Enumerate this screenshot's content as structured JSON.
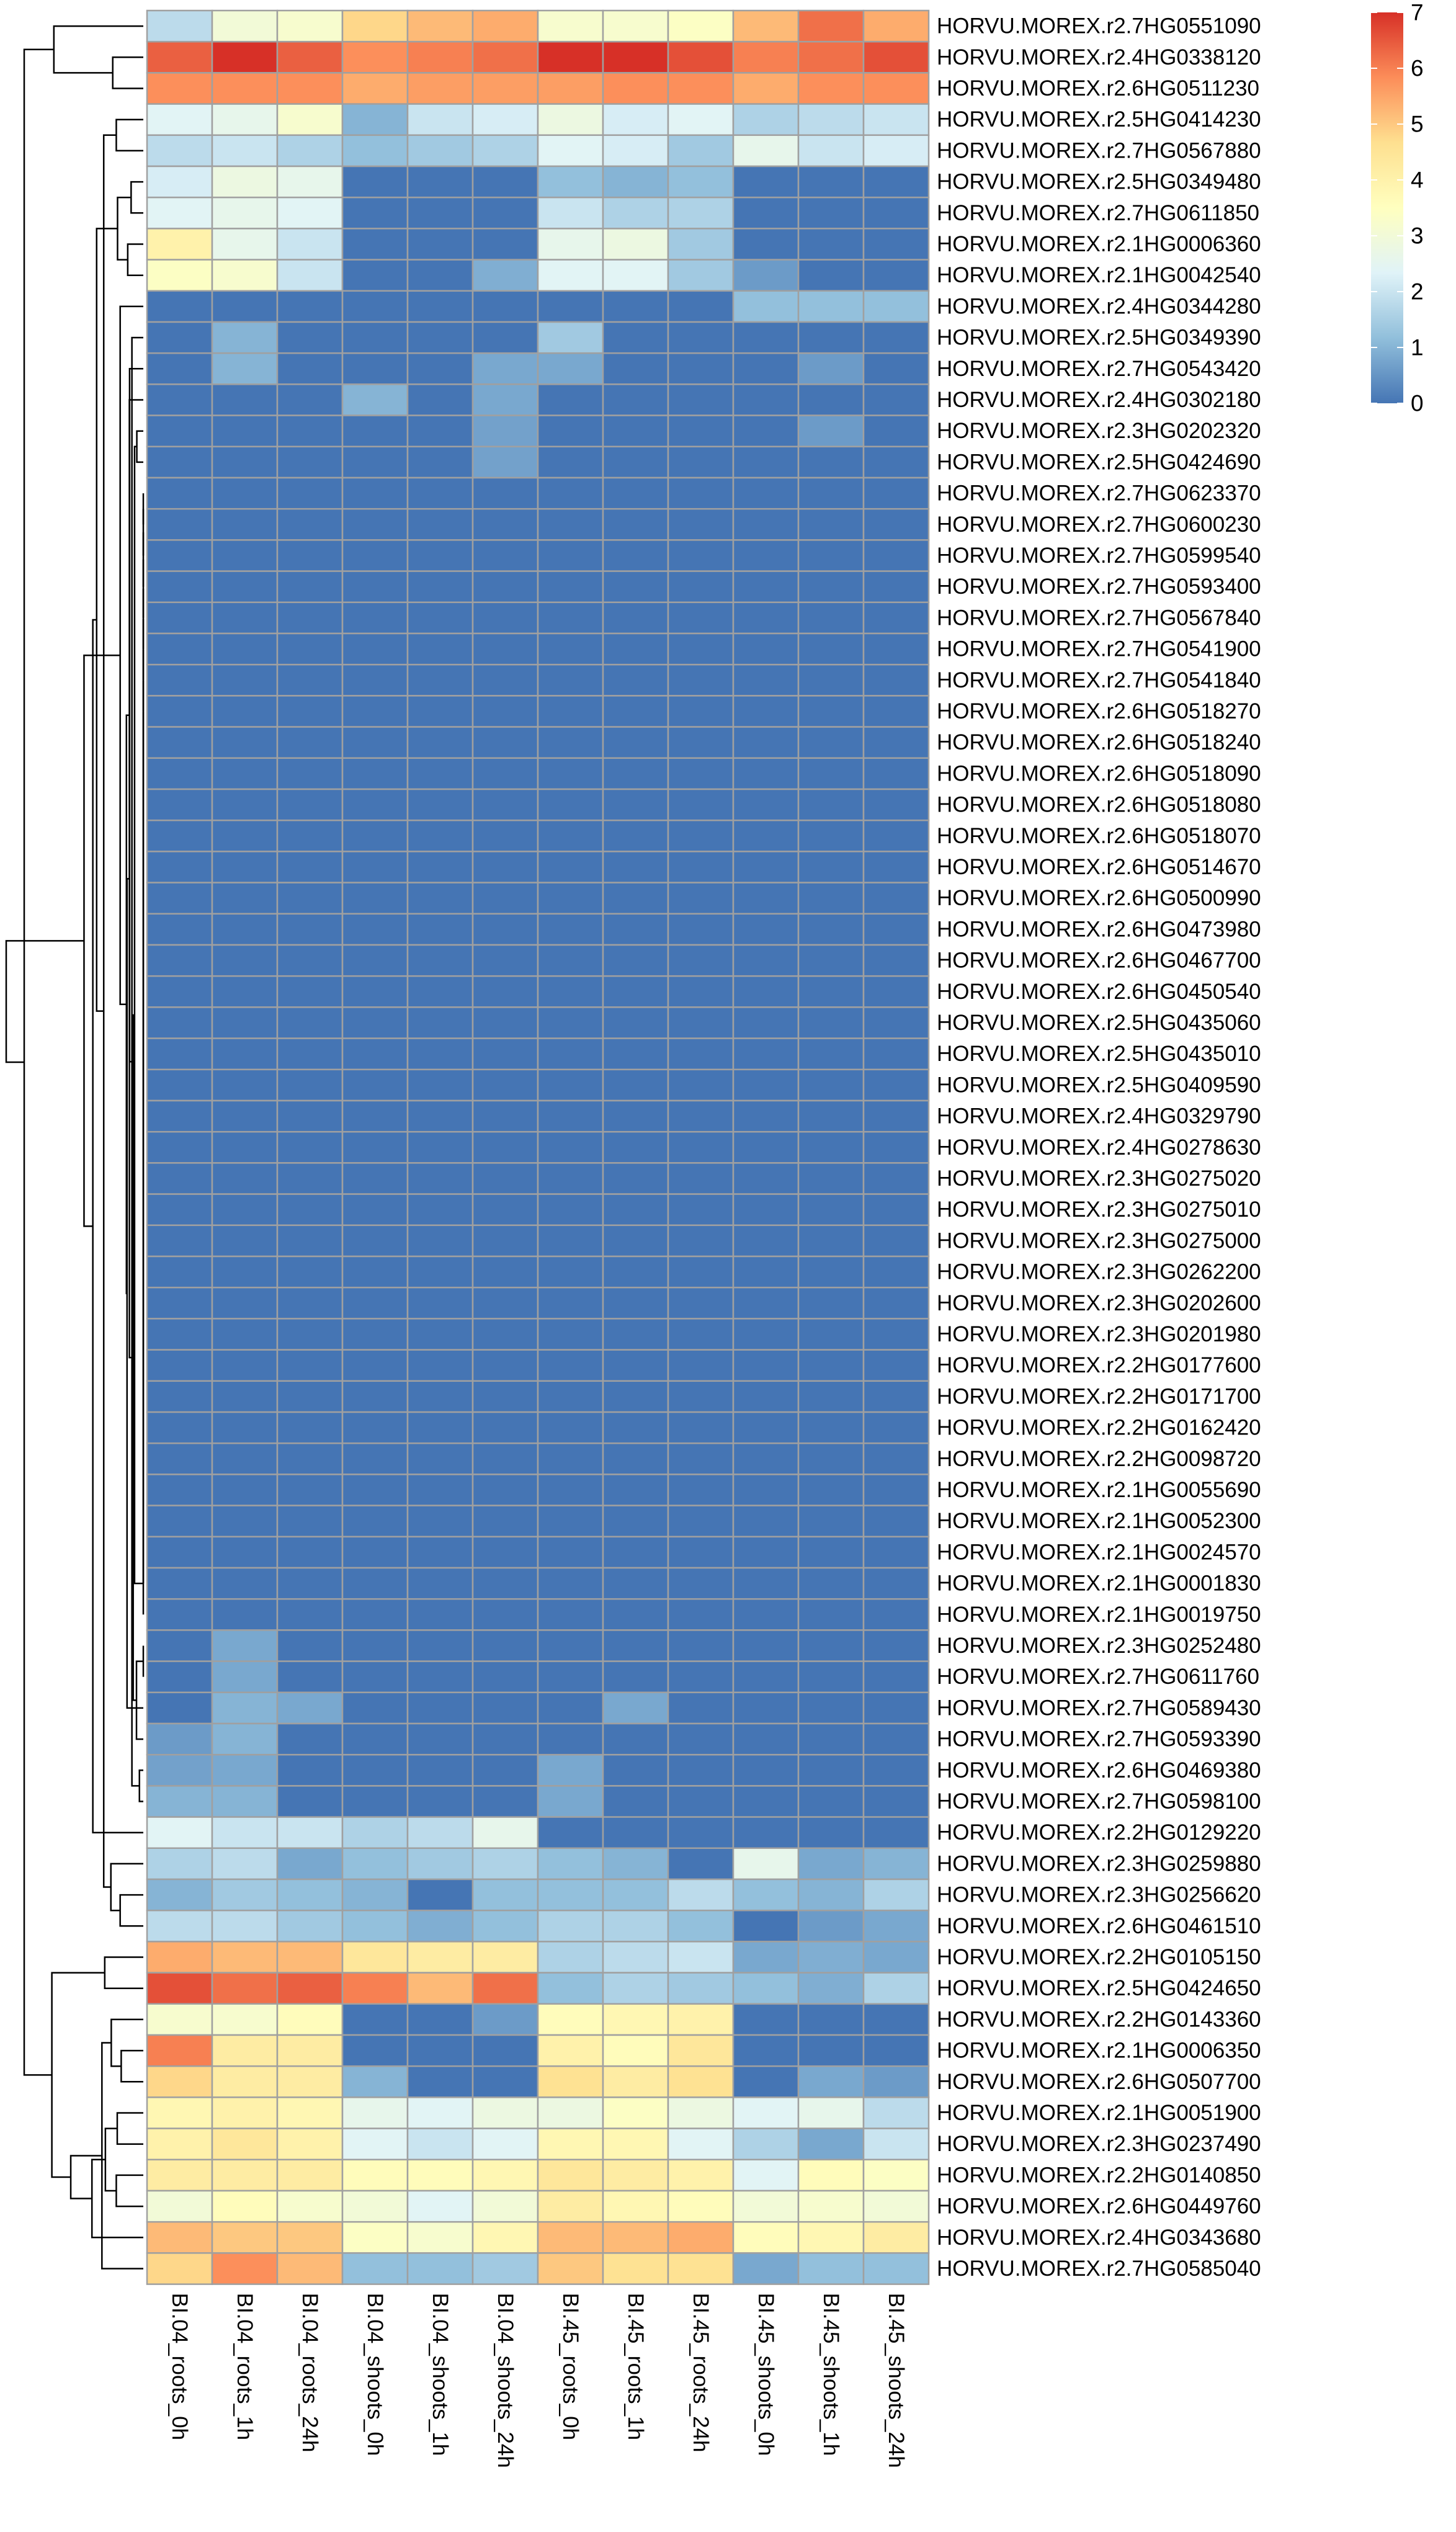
{
  "chart_data": {
    "type": "heatmap",
    "title": "",
    "xlabel": "",
    "ylabel": "",
    "columns": [
      "BI.04_roots_0h",
      "BI.04_roots_1h",
      "BI.04_roots_24h",
      "BI.04_shoots_0h",
      "BI.04_shoots_1h",
      "BI.04_shoots_24h",
      "BI.45_roots_0h",
      "BI.45_roots_1h",
      "BI.45_roots_24h",
      "BI.45_shoots_0h",
      "BI.45_shoots_1h",
      "BI.45_shoots_24h"
    ],
    "rows": [
      "HORVU.MOREX.r2.7HG0551090",
      "HORVU.MOREX.r2.4HG0338120",
      "HORVU.MOREX.r2.6HG0511230",
      "HORVU.MOREX.r2.5HG0414230",
      "HORVU.MOREX.r2.7HG0567880",
      "HORVU.MOREX.r2.5HG0349480",
      "HORVU.MOREX.r2.7HG0611850",
      "HORVU.MOREX.r2.1HG0006360",
      "HORVU.MOREX.r2.1HG0042540",
      "HORVU.MOREX.r2.4HG0344280",
      "HORVU.MOREX.r2.5HG0349390",
      "HORVU.MOREX.r2.7HG0543420",
      "HORVU.MOREX.r2.4HG0302180",
      "HORVU.MOREX.r2.3HG0202320",
      "HORVU.MOREX.r2.5HG0424690",
      "HORVU.MOREX.r2.7HG0623370",
      "HORVU.MOREX.r2.7HG0600230",
      "HORVU.MOREX.r2.7HG0599540",
      "HORVU.MOREX.r2.7HG0593400",
      "HORVU.MOREX.r2.7HG0567840",
      "HORVU.MOREX.r2.7HG0541900",
      "HORVU.MOREX.r2.7HG0541840",
      "HORVU.MOREX.r2.6HG0518270",
      "HORVU.MOREX.r2.6HG0518240",
      "HORVU.MOREX.r2.6HG0518090",
      "HORVU.MOREX.r2.6HG0518080",
      "HORVU.MOREX.r2.6HG0518070",
      "HORVU.MOREX.r2.6HG0514670",
      "HORVU.MOREX.r2.6HG0500990",
      "HORVU.MOREX.r2.6HG0473980",
      "HORVU.MOREX.r2.6HG0467700",
      "HORVU.MOREX.r2.6HG0450540",
      "HORVU.MOREX.r2.5HG0435060",
      "HORVU.MOREX.r2.5HG0435010",
      "HORVU.MOREX.r2.5HG0409590",
      "HORVU.MOREX.r2.4HG0329790",
      "HORVU.MOREX.r2.4HG0278630",
      "HORVU.MOREX.r2.3HG0275020",
      "HORVU.MOREX.r2.3HG0275010",
      "HORVU.MOREX.r2.3HG0275000",
      "HORVU.MOREX.r2.3HG0262200",
      "HORVU.MOREX.r2.3HG0202600",
      "HORVU.MOREX.r2.3HG0201980",
      "HORVU.MOREX.r2.2HG0177600",
      "HORVU.MOREX.r2.2HG0171700",
      "HORVU.MOREX.r2.2HG0162420",
      "HORVU.MOREX.r2.2HG0098720",
      "HORVU.MOREX.r2.1HG0055690",
      "HORVU.MOREX.r2.1HG0052300",
      "HORVU.MOREX.r2.1HG0024570",
      "HORVU.MOREX.r2.1HG0001830",
      "HORVU.MOREX.r2.1HG0019750",
      "HORVU.MOREX.r2.3HG0252480",
      "HORVU.MOREX.r2.7HG0611760",
      "HORVU.MOREX.r2.7HG0589430",
      "HORVU.MOREX.r2.7HG0593390",
      "HORVU.MOREX.r2.6HG0469380",
      "HORVU.MOREX.r2.7HG0598100",
      "HORVU.MOREX.r2.2HG0129220",
      "HORVU.MOREX.r2.3HG0259880",
      "HORVU.MOREX.r2.3HG0256620",
      "HORVU.MOREX.r2.6HG0461510",
      "HORVU.MOREX.r2.2HG0105150",
      "HORVU.MOREX.r2.5HG0424650",
      "HORVU.MOREX.r2.2HG0143360",
      "HORVU.MOREX.r2.1HG0006350",
      "HORVU.MOREX.r2.6HG0507700",
      "HORVU.MOREX.r2.1HG0051900",
      "HORVU.MOREX.r2.3HG0237490",
      "HORVU.MOREX.r2.2HG0140850",
      "HORVU.MOREX.r2.6HG0449760",
      "HORVU.MOREX.r2.4HG0343680",
      "HORVU.MOREX.r2.7HG0585040"
    ],
    "values": [
      [
        1.8,
        3.0,
        3.2,
        4.8,
        5.2,
        5.4,
        3.2,
        3.2,
        3.4,
        5.2,
        6.2,
        5.4
      ],
      [
        6.4,
        7.0,
        6.4,
        5.8,
        6.0,
        6.2,
        7.0,
        7.0,
        6.6,
        6.0,
        6.2,
        6.6
      ],
      [
        5.8,
        5.8,
        5.8,
        5.4,
        5.6,
        5.6,
        5.6,
        5.8,
        5.8,
        5.4,
        5.8,
        5.8
      ],
      [
        2.4,
        2.6,
        3.2,
        1.0,
        2.0,
        2.2,
        2.8,
        2.2,
        2.4,
        1.6,
        1.8,
        2.0
      ],
      [
        1.8,
        2.0,
        1.6,
        1.2,
        1.4,
        1.6,
        2.4,
        2.2,
        1.4,
        2.6,
        2.0,
        2.2
      ],
      [
        2.2,
        2.8,
        2.6,
        0,
        0,
        0,
        1.2,
        1.0,
        1.2,
        0,
        0,
        0
      ],
      [
        2.4,
        2.6,
        2.4,
        0,
        0,
        0,
        2.0,
        1.6,
        1.6,
        0,
        0,
        0
      ],
      [
        4.0,
        2.6,
        2.0,
        0,
        0,
        0,
        2.6,
        2.8,
        1.4,
        0,
        0,
        0
      ],
      [
        3.4,
        3.2,
        2.0,
        0,
        0,
        0.9,
        2.4,
        2.4,
        1.4,
        0.6,
        0,
        0
      ],
      [
        0,
        0,
        0,
        0,
        0,
        0,
        0,
        0,
        0,
        1.2,
        1.2,
        1.2
      ],
      [
        0,
        1.0,
        0,
        0,
        0,
        0,
        1.4,
        0,
        0,
        0,
        0,
        0
      ],
      [
        0,
        1.0,
        0,
        0,
        0,
        0.8,
        0.8,
        0,
        0,
        0,
        0.6,
        0
      ],
      [
        0,
        0,
        0,
        1.0,
        0,
        0.8,
        0,
        0,
        0,
        0,
        0,
        0
      ],
      [
        0,
        0,
        0,
        0,
        0,
        0.7,
        0,
        0,
        0,
        0,
        0.6,
        0
      ],
      [
        0,
        0,
        0,
        0,
        0,
        0.7,
        0,
        0,
        0,
        0,
        0,
        0
      ],
      [
        0,
        0,
        0,
        0,
        0,
        0,
        0,
        0,
        0,
        0,
        0,
        0
      ],
      [
        0,
        0,
        0,
        0,
        0,
        0,
        0,
        0,
        0,
        0,
        0,
        0
      ],
      [
        0,
        0,
        0,
        0,
        0,
        0,
        0,
        0,
        0,
        0,
        0,
        0
      ],
      [
        0,
        0,
        0,
        0,
        0,
        0,
        0,
        0,
        0,
        0,
        0,
        0
      ],
      [
        0,
        0,
        0,
        0,
        0,
        0,
        0,
        0,
        0,
        0,
        0,
        0
      ],
      [
        0,
        0,
        0,
        0,
        0,
        0,
        0,
        0,
        0,
        0,
        0,
        0
      ],
      [
        0,
        0,
        0,
        0,
        0,
        0,
        0,
        0,
        0,
        0,
        0,
        0
      ],
      [
        0,
        0,
        0,
        0,
        0,
        0,
        0,
        0,
        0,
        0,
        0,
        0
      ],
      [
        0,
        0,
        0,
        0,
        0,
        0,
        0,
        0,
        0,
        0,
        0,
        0
      ],
      [
        0,
        0,
        0,
        0,
        0,
        0,
        0,
        0,
        0,
        0,
        0,
        0
      ],
      [
        0,
        0,
        0,
        0,
        0,
        0,
        0,
        0,
        0,
        0,
        0,
        0
      ],
      [
        0,
        0,
        0,
        0,
        0,
        0,
        0,
        0,
        0,
        0,
        0,
        0
      ],
      [
        0,
        0,
        0,
        0,
        0,
        0,
        0,
        0,
        0,
        0,
        0,
        0
      ],
      [
        0,
        0,
        0,
        0,
        0,
        0,
        0,
        0,
        0,
        0,
        0,
        0
      ],
      [
        0,
        0,
        0,
        0,
        0,
        0,
        0,
        0,
        0,
        0,
        0,
        0
      ],
      [
        0,
        0,
        0,
        0,
        0,
        0,
        0,
        0,
        0,
        0,
        0,
        0
      ],
      [
        0,
        0,
        0,
        0,
        0,
        0,
        0,
        0,
        0,
        0,
        0,
        0
      ],
      [
        0,
        0,
        0,
        0,
        0,
        0,
        0,
        0,
        0,
        0,
        0,
        0
      ],
      [
        0,
        0,
        0,
        0,
        0,
        0,
        0,
        0,
        0,
        0,
        0,
        0
      ],
      [
        0,
        0,
        0,
        0,
        0,
        0,
        0,
        0,
        0,
        0,
        0,
        0
      ],
      [
        0,
        0,
        0,
        0,
        0,
        0,
        0,
        0,
        0,
        0,
        0,
        0
      ],
      [
        0,
        0,
        0,
        0,
        0,
        0,
        0,
        0,
        0,
        0,
        0,
        0
      ],
      [
        0,
        0,
        0,
        0,
        0,
        0,
        0,
        0,
        0,
        0,
        0,
        0
      ],
      [
        0,
        0,
        0,
        0,
        0,
        0,
        0,
        0,
        0,
        0,
        0,
        0
      ],
      [
        0,
        0,
        0,
        0,
        0,
        0,
        0,
        0,
        0,
        0,
        0,
        0
      ],
      [
        0,
        0,
        0,
        0,
        0,
        0,
        0,
        0,
        0,
        0,
        0,
        0
      ],
      [
        0,
        0,
        0,
        0,
        0,
        0,
        0,
        0,
        0,
        0,
        0,
        0
      ],
      [
        0,
        0,
        0,
        0,
        0,
        0,
        0,
        0,
        0,
        0,
        0,
        0
      ],
      [
        0,
        0,
        0,
        0,
        0,
        0,
        0,
        0,
        0,
        0,
        0,
        0
      ],
      [
        0,
        0,
        0,
        0,
        0,
        0,
        0,
        0,
        0,
        0,
        0,
        0
      ],
      [
        0,
        0,
        0,
        0,
        0,
        0,
        0,
        0,
        0,
        0,
        0,
        0
      ],
      [
        0,
        0,
        0,
        0,
        0,
        0,
        0,
        0,
        0,
        0,
        0,
        0
      ],
      [
        0,
        0,
        0,
        0,
        0,
        0,
        0,
        0,
        0,
        0,
        0,
        0
      ],
      [
        0,
        0,
        0,
        0,
        0,
        0,
        0,
        0,
        0,
        0,
        0,
        0
      ],
      [
        0,
        0,
        0,
        0,
        0,
        0,
        0,
        0,
        0,
        0,
        0,
        0
      ],
      [
        0,
        0,
        0,
        0,
        0,
        0,
        0,
        0,
        0,
        0,
        0,
        0
      ],
      [
        0,
        0,
        0,
        0,
        0,
        0,
        0,
        0,
        0,
        0,
        0,
        0
      ],
      [
        0,
        0.8,
        0,
        0,
        0,
        0,
        0,
        0,
        0,
        0,
        0,
        0
      ],
      [
        0,
        0.8,
        0,
        0,
        0,
        0,
        0,
        0,
        0,
        0,
        0,
        0
      ],
      [
        0,
        1.0,
        0.8,
        0,
        0,
        0,
        0,
        0.8,
        0,
        0,
        0,
        0
      ],
      [
        0.6,
        1.0,
        0,
        0,
        0,
        0,
        0,
        0,
        0,
        0,
        0,
        0
      ],
      [
        0.7,
        0.8,
        0,
        0,
        0,
        0,
        0.8,
        0,
        0,
        0,
        0,
        0
      ],
      [
        1.0,
        1.0,
        0,
        0,
        0,
        0,
        0.8,
        0,
        0,
        0,
        0,
        0
      ],
      [
        2.4,
        2.0,
        2.0,
        1.6,
        1.8,
        2.6,
        0,
        0,
        0,
        0,
        0,
        0
      ],
      [
        1.6,
        1.8,
        0.8,
        1.2,
        1.4,
        1.6,
        1.2,
        1.0,
        0,
        2.6,
        0.8,
        1.0
      ],
      [
        1.0,
        1.4,
        1.2,
        1.0,
        0,
        1.2,
        1.2,
        1.2,
        1.8,
        1.2,
        1.0,
        1.6
      ],
      [
        1.8,
        1.8,
        1.4,
        1.2,
        0.9,
        1.2,
        1.6,
        1.6,
        1.2,
        0,
        0.6,
        0.8
      ],
      [
        5.4,
        5.2,
        5.2,
        4.4,
        4.2,
        4.2,
        1.6,
        1.8,
        2.0,
        0.8,
        0.9,
        0.8
      ],
      [
        6.6,
        6.2,
        6.4,
        6.0,
        5.2,
        6.2,
        1.2,
        1.6,
        1.4,
        1.2,
        0.9,
        1.6
      ],
      [
        3.2,
        3.2,
        3.6,
        0,
        0,
        0.6,
        3.6,
        3.8,
        4.0,
        0,
        0,
        0
      ],
      [
        6.0,
        4.2,
        4.2,
        0,
        0,
        0,
        4.0,
        3.6,
        4.4,
        0,
        0,
        0
      ],
      [
        4.8,
        4.2,
        4.2,
        1.0,
        0,
        0,
        4.6,
        4.2,
        4.6,
        0,
        0.8,
        0.6
      ],
      [
        3.8,
        4.0,
        3.8,
        2.6,
        2.4,
        2.8,
        2.8,
        3.4,
        2.8,
        2.4,
        2.6,
        1.8
      ],
      [
        4.0,
        4.4,
        4.0,
        2.4,
        2.0,
        2.4,
        3.8,
        3.8,
        2.4,
        1.6,
        0.8,
        2.0
      ],
      [
        4.2,
        4.2,
        4.2,
        3.6,
        3.6,
        3.8,
        4.4,
        4.2,
        4.0,
        2.4,
        3.6,
        3.4
      ],
      [
        3.0,
        3.6,
        3.2,
        3.0,
        2.4,
        3.0,
        4.2,
        3.8,
        3.6,
        3.0,
        3.2,
        3.0
      ],
      [
        5.2,
        5.0,
        5.0,
        3.4,
        3.2,
        3.8,
        5.2,
        5.2,
        5.4,
        3.6,
        3.8,
        4.2
      ],
      [
        4.8,
        5.8,
        5.2,
        1.2,
        1.2,
        1.4,
        5.0,
        4.6,
        4.6,
        0.8,
        1.2,
        1.2
      ]
    ],
    "color_scale": {
      "min": 0,
      "max": 7,
      "stops": [
        "#4575B4",
        "#91BFDB",
        "#E0F3F8",
        "#FFFFBF",
        "#FEE090",
        "#FC8D59",
        "#D73027"
      ],
      "cell_border": "#A0A0A0"
    },
    "legend": {
      "position": "top-right",
      "ticks": [
        "0",
        "1",
        "2",
        "3",
        "4",
        "5",
        "6",
        "7"
      ]
    },
    "row_dendrogram": true
  }
}
